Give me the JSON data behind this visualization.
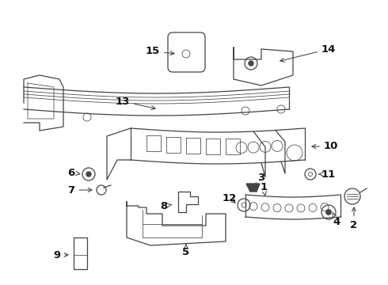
{
  "bg_color": "#ffffff",
  "line_color": "#444444",
  "label_color": "#111111",
  "lw": 0.9,
  "lw_thin": 0.55,
  "fontsize": 9.5,
  "figsize": [
    4.9,
    3.6
  ],
  "dpi": 100
}
